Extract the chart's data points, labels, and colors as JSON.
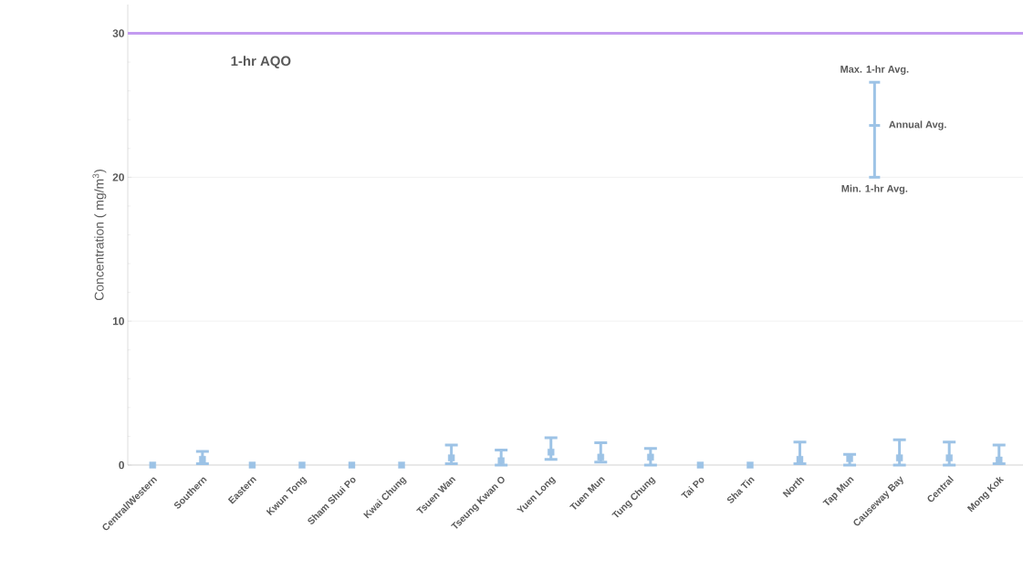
{
  "chart_data": {
    "type": "scatter",
    "ylabel": "Concentration ( mg/m$^{3}$)",
    "categories": [
      "Central/Western",
      "Southern",
      "Eastern",
      "Kwun Tong",
      "Sham Shui Po",
      "Kwai Chung",
      "Tsuen Wan",
      "Tseung Kwan O",
      "Yuen Long",
      "Tuen Mun",
      "Tung Chung",
      "Tai Po",
      "Sha Tin",
      "North",
      "Tap Mun",
      "Causeway Bay",
      "Central",
      "Mong Kok"
    ],
    "series": [
      {
        "color": "#9dc3e6",
        "values": [
          0,
          0.4,
          0,
          0,
          0,
          0,
          0.5,
          0.3,
          0.9,
          0.55,
          0.55,
          0,
          0,
          0.4,
          0.45,
          0.5,
          0.5,
          0.35
        ],
        "errors": [
          null,
          [
            0.1,
            0.95
          ],
          null,
          null,
          null,
          null,
          [
            0.1,
            1.4
          ],
          [
            0,
            1.05
          ],
          [
            0.4,
            1.9
          ],
          [
            0.2,
            1.55
          ],
          [
            0,
            1.15
          ],
          null,
          null,
          [
            0.1,
            1.6
          ],
          [
            0,
            0.75
          ],
          [
            0,
            1.75
          ],
          [
            0,
            1.6
          ],
          [
            0.1,
            1.4
          ]
        ]
      }
    ],
    "ylim": [
      0,
      32
    ],
    "yticks": [
      0,
      10,
      20,
      30
    ],
    "grid": "y",
    "marker": "square",
    "ref_lines": [
      {
        "axis": "y",
        "value": 30,
        "label": "1-hr AQO",
        "color": "#c39bf0"
      }
    ],
    "annotations": [
      "Max. 1-hr Avg.",
      "Annual Avg.",
      "Min. 1-hr Avg."
    ]
  }
}
